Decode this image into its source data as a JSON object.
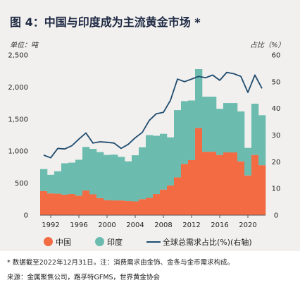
{
  "title": "图 4：中国与印度成为主流黄金市场 *",
  "left_unit": "单位：吨",
  "right_unit": "占比（%）",
  "footnote": "* 数据截至2022年12月31日。注：消费需求由金饰、金条与金币需求构成。",
  "source": "来源：金属聚焦公司，路孚特GFMS，世界黄金协会",
  "colors": {
    "china": "#f26b43",
    "india": "#6bbcaf",
    "share": "#1f4b6e"
  },
  "chart_data": {
    "type": "bar",
    "stacked": true,
    "x": [
      1991,
      1992,
      1993,
      1994,
      1995,
      1996,
      1997,
      1998,
      1999,
      2000,
      2001,
      2002,
      2003,
      2004,
      2005,
      2006,
      2007,
      2008,
      2009,
      2010,
      2011,
      2012,
      2013,
      2014,
      2015,
      2016,
      2017,
      2018,
      2019,
      2020,
      2021,
      2022
    ],
    "x_ticks": [
      1992,
      1996,
      2000,
      2004,
      2008,
      2012,
      2016,
      2020
    ],
    "y_ticks_left": [
      "0",
      "500",
      "1,000",
      "1,500",
      "2,000",
      "2,500"
    ],
    "y_ticks_right": [
      "0",
      "10",
      "20",
      "30",
      "40",
      "50",
      "60"
    ],
    "ylim_left": [
      0,
      2500
    ],
    "ylim_right": [
      0,
      60
    ],
    "series": [
      {
        "name": "中国",
        "axis": "left",
        "values": [
          375,
          340,
          335,
          320,
          330,
          305,
          385,
          325,
          265,
          235,
          230,
          230,
          220,
          215,
          250,
          270,
          330,
          400,
          465,
          590,
          800,
          860,
          1360,
          990,
          990,
          940,
          980,
          980,
          840,
          620,
          940,
          780
        ]
      },
      {
        "name": "印度",
        "axis": "left",
        "values": [
          345,
          290,
          350,
          490,
          490,
          560,
          680,
          710,
          720,
          705,
          715,
          680,
          620,
          720,
          810,
          980,
          910,
          870,
          750,
          1050,
          980,
          930,
          920,
          860,
          860,
          720,
          770,
          770,
          780,
          430,
          800,
          780
        ]
      },
      {
        "name": "全球总需求占比(%)(右轴)",
        "axis": "right",
        "values": [
          22.5,
          21.5,
          25,
          24.8,
          26,
          28.5,
          30.8,
          27,
          27.5,
          27.3,
          27,
          25,
          26.5,
          29,
          31,
          35.5,
          38,
          38.5,
          43,
          51,
          50,
          51,
          52,
          51.5,
          52.5,
          50.5,
          53.5,
          53,
          52,
          46,
          52.5,
          47.5
        ]
      }
    ],
    "grid": false,
    "legend_position": "bottom"
  }
}
